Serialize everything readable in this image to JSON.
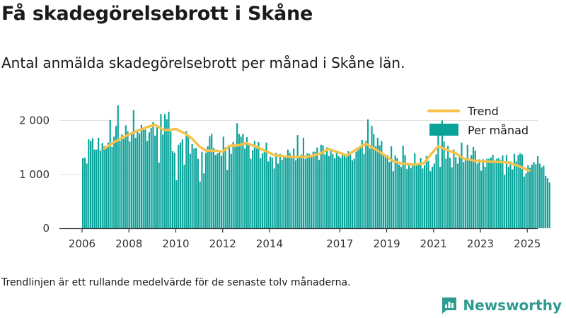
{
  "title": "Få skadegörelsebrott i Skåne",
  "subtitle": "Antal anmälda skadegörelsebrott per månad i Skåne län.",
  "footnote": "Trendlinjen är ett rullande medelvärde för de senaste tolv månaderna.",
  "brand": {
    "name": "Newsworthy",
    "color": "#2e9b8f",
    "icon": "newsworthy-logo-icon"
  },
  "chart_data": {
    "type": "bar",
    "title": "Få skadegörelsebrott i Skåne",
    "xlabel": "",
    "ylabel": "",
    "ylim": [
      0,
      2400
    ],
    "yticks": [
      0,
      1000,
      2000
    ],
    "ytick_labels": [
      "0",
      "1 000",
      "2 000"
    ],
    "xticks": [
      2006,
      2008,
      2010,
      2012,
      2014,
      2017,
      2019,
      2021,
      2023,
      2025
    ],
    "grid": "horizontal",
    "legend_position": "top-right",
    "colors": {
      "bars": "#0aa39a",
      "trend": "#f7c14a",
      "grid": "#e2e2e2",
      "axis": "#333333"
    },
    "series": [
      {
        "name": "Per månad",
        "type": "bar",
        "x_start": "2006-01",
        "values": [
          1300,
          1310,
          1200,
          1650,
          1620,
          1670,
          1460,
          1460,
          1680,
          1440,
          1580,
          1520,
          1490,
          1590,
          2010,
          1510,
          1700,
          1900,
          2280,
          1620,
          1740,
          1660,
          1910,
          1800,
          1610,
          1740,
          2190,
          1680,
          1800,
          1760,
          1920,
          1850,
          1830,
          1620,
          1780,
          1860,
          1970,
          1720,
          1900,
          1220,
          2120,
          1740,
          2120,
          2020,
          2160,
          1800,
          1430,
          1400,
          890,
          1550,
          1590,
          1650,
          1180,
          1800,
          1700,
          1380,
          1560,
          1480,
          1490,
          1290,
          870,
          1420,
          1020,
          1400,
          1520,
          1710,
          1750,
          1490,
          1360,
          1390,
          1410,
          1340,
          1700,
          1500,
          1080,
          1550,
          1380,
          1600,
          1510,
          1950,
          1750,
          1700,
          1750,
          1480,
          1690,
          1560,
          1290,
          1450,
          1620,
          1480,
          1600,
          1300,
          1390,
          1420,
          1590,
          1240,
          1330,
          1310,
          1110,
          1400,
          1200,
          1380,
          1270,
          1320,
          1330,
          1460,
          1400,
          1350,
          1480,
          1260,
          1730,
          1330,
          1370,
          1680,
          1290,
          1390,
          1380,
          1350,
          1420,
          1420,
          1500,
          1270,
          1550,
          1540,
          1370,
          1500,
          1340,
          1480,
          1380,
          1300,
          1430,
          1340,
          1310,
          1380,
          1380,
          1320,
          1430,
          1400,
          1260,
          1290,
          1420,
          1450,
          1500,
          1640,
          1380,
          1620,
          2020,
          1480,
          1900,
          1750,
          1520,
          1680,
          1540,
          1620,
          1370,
          1320,
          1360,
          1230,
          1520,
          1060,
          1350,
          1300,
          1180,
          1140,
          1530,
          1360,
          1100,
          1210,
          1120,
          1180,
          1390,
          1180,
          1200,
          1300,
          1110,
          1170,
          1340,
          1250,
          1060,
          1140,
          1200,
          1370,
          1810,
          1140,
          2000,
          1610,
          1290,
          1530,
          1310,
          1130,
          1460,
          1320,
          1200,
          1340,
          1590,
          1230,
          1310,
          1550,
          1280,
          1360,
          1510,
          1440,
          1200,
          1280,
          1070,
          1280,
          1140,
          1290,
          1290,
          1310,
          1360,
          1260,
          1290,
          1300,
          1260,
          1350,
          990,
          1360,
          1140,
          1240,
          1090,
          1380,
          1240,
          1360,
          1390,
          1370,
          960,
          1020,
          1170,
          1120,
          1180,
          1230,
          1190,
          1340,
          1200,
          1130,
          1160,
          970,
          930,
          850
        ]
      },
      {
        "name": "Trend",
        "type": "line",
        "points": [
          [
            2006.95,
            1480
          ],
          [
            2007.3,
            1580
          ],
          [
            2007.8,
            1700
          ],
          [
            2008.3,
            1800
          ],
          [
            2008.8,
            1880
          ],
          [
            2009.1,
            1920
          ],
          [
            2009.5,
            1820
          ],
          [
            2010.0,
            1840
          ],
          [
            2010.4,
            1760
          ],
          [
            2010.7,
            1660
          ],
          [
            2011.0,
            1520
          ],
          [
            2011.3,
            1440
          ],
          [
            2011.7,
            1440
          ],
          [
            2012.0,
            1420
          ],
          [
            2012.3,
            1530
          ],
          [
            2012.7,
            1540
          ],
          [
            2013.0,
            1580
          ],
          [
            2013.4,
            1520
          ],
          [
            2013.8,
            1440
          ],
          [
            2014.2,
            1360
          ],
          [
            2014.7,
            1330
          ],
          [
            2015.2,
            1320
          ],
          [
            2015.7,
            1330
          ],
          [
            2016.2,
            1390
          ],
          [
            2016.5,
            1470
          ],
          [
            2017.0,
            1400
          ],
          [
            2017.3,
            1350
          ],
          [
            2017.7,
            1460
          ],
          [
            2018.1,
            1570
          ],
          [
            2018.5,
            1470
          ],
          [
            2018.9,
            1360
          ],
          [
            2019.3,
            1240
          ],
          [
            2019.7,
            1200
          ],
          [
            2020.2,
            1180
          ],
          [
            2020.6,
            1210
          ],
          [
            2020.9,
            1380
          ],
          [
            2021.2,
            1520
          ],
          [
            2021.6,
            1450
          ],
          [
            2022.0,
            1380
          ],
          [
            2022.3,
            1290
          ],
          [
            2022.8,
            1250
          ],
          [
            2023.2,
            1240
          ],
          [
            2023.8,
            1230
          ],
          [
            2024.2,
            1220
          ],
          [
            2024.6,
            1160
          ],
          [
            2025.0,
            1080
          ],
          [
            2025.08,
            1070
          ]
        ]
      }
    ]
  }
}
